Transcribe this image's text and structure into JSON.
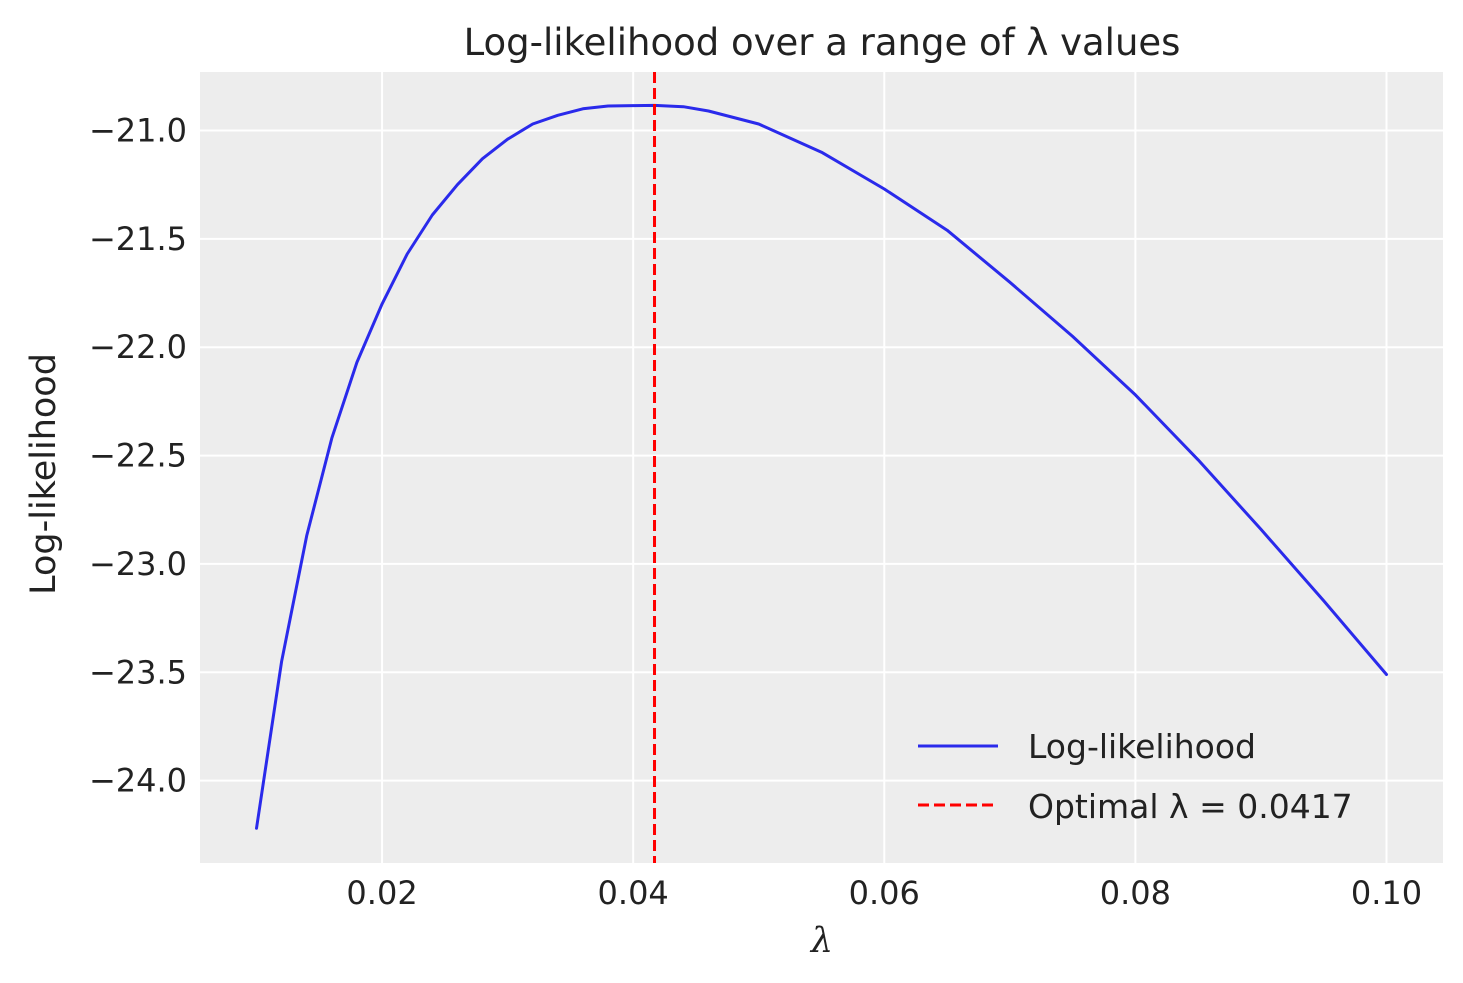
{
  "chart_data": {
    "type": "line",
    "title": "Log-likelihood over a range of λ values",
    "xlabel": "λ",
    "ylabel": "Log-likelihood",
    "xlim": [
      0.0055,
      0.1045
    ],
    "ylim": [
      -24.38,
      -20.73
    ],
    "xticks": [
      0.02,
      0.04,
      0.06,
      0.08,
      0.1
    ],
    "xtick_labels": [
      "0.02",
      "0.04",
      "0.06",
      "0.08",
      "0.10"
    ],
    "yticks": [
      -21.0,
      -21.5,
      -22.0,
      -22.5,
      -23.0,
      -23.5,
      -24.0
    ],
    "ytick_labels": [
      "−21.0",
      "−21.5",
      "−22.0",
      "−22.5",
      "−23.0",
      "−23.5",
      "−24.0"
    ],
    "grid": true,
    "background": "#ededed",
    "series": [
      {
        "name": "Log-likelihood",
        "color": "#2a2aeb",
        "style": "solid",
        "x": [
          0.01,
          0.012,
          0.014,
          0.016,
          0.018,
          0.02,
          0.022,
          0.024,
          0.026,
          0.028,
          0.03,
          0.032,
          0.034,
          0.036,
          0.038,
          0.04,
          0.0417,
          0.044,
          0.046,
          0.048,
          0.05,
          0.055,
          0.06,
          0.065,
          0.07,
          0.075,
          0.08,
          0.085,
          0.09,
          0.095,
          0.1
        ],
        "y": [
          -24.22,
          -23.45,
          -22.87,
          -22.42,
          -22.07,
          -21.8,
          -21.57,
          -21.39,
          -21.25,
          -21.13,
          -21.04,
          -20.97,
          -20.93,
          -20.9,
          -20.887,
          -20.885,
          -20.884,
          -20.89,
          -20.91,
          -20.94,
          -20.97,
          -21.1,
          -21.27,
          -21.46,
          -21.7,
          -21.95,
          -22.22,
          -22.52,
          -22.84,
          -23.17,
          -23.51
        ]
      }
    ],
    "vlines": [
      {
        "name": "Optimal λ = 0.0417",
        "x": 0.0417,
        "color": "#ff0000",
        "style": "dashed"
      }
    ],
    "legend": {
      "placement": "lower-right",
      "entries": [
        "Log-likelihood",
        "Optimal λ = 0.0417"
      ]
    }
  }
}
